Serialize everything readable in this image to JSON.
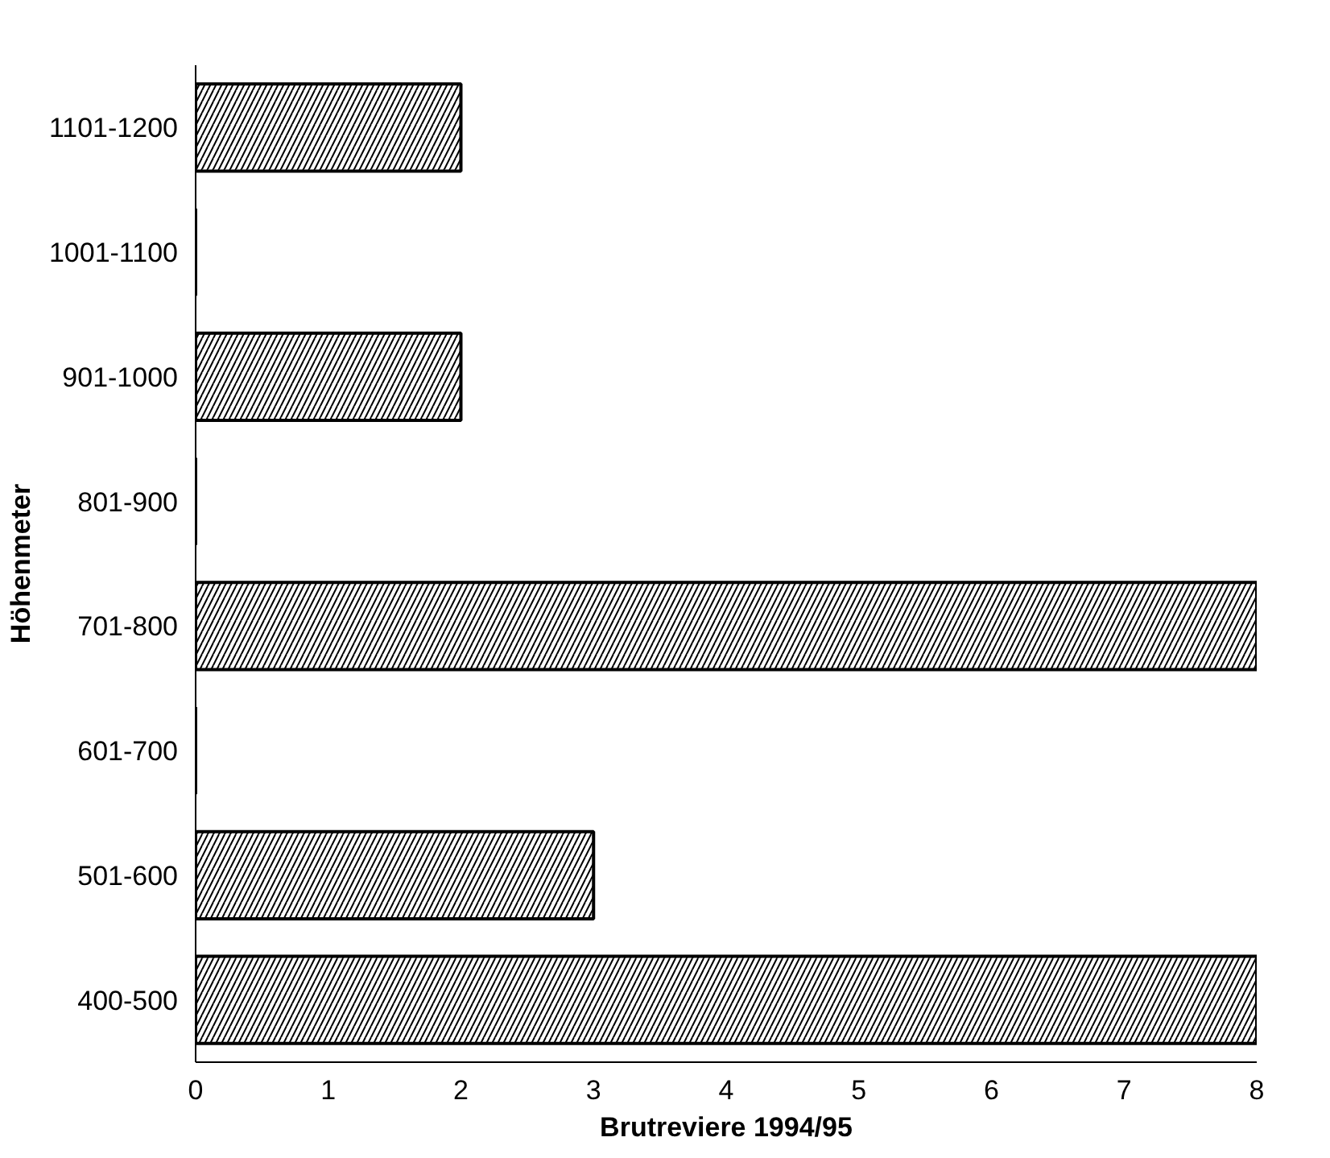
{
  "chart_data": {
    "type": "bar",
    "orientation": "horizontal",
    "xlabel": "Brutreviere 1994/95",
    "ylabel": "Höhenmeter",
    "categories": [
      "1101-1200",
      "1001-1100",
      "901-1000",
      "801-900",
      "701-800",
      "601-700",
      "501-600",
      "400-500"
    ],
    "values": [
      2,
      0,
      2,
      0,
      8,
      0,
      3,
      8
    ],
    "color": "#000000",
    "xlim": [
      0,
      8
    ],
    "xticks": [
      0,
      1,
      2,
      3,
      4,
      5,
      6,
      7,
      8
    ],
    "grid": false
  }
}
